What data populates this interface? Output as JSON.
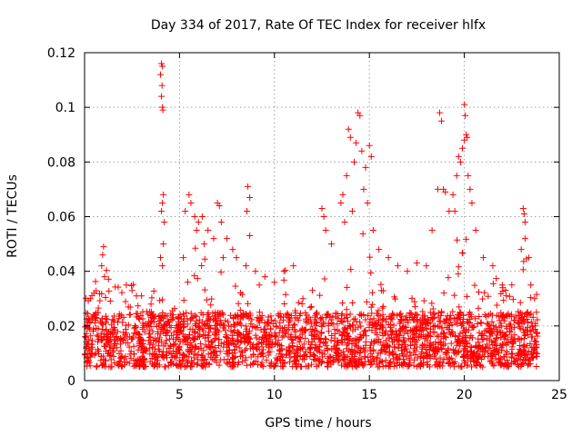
{
  "chart_data": {
    "type": "scatter",
    "title": "Day 334 of 2017, Rate Of TEC Index for receiver hlfx",
    "xlabel": "GPS time / hours",
    "ylabel": "ROTI / TECUs",
    "xlim": [
      0,
      25
    ],
    "ylim": [
      0,
      0.12
    ],
    "xticks": [
      0,
      5,
      10,
      15,
      20,
      25
    ],
    "xtick_labels": [
      "0",
      "5",
      "10",
      "15",
      "20",
      "25"
    ],
    "yticks": [
      0,
      0.02,
      0.04,
      0.06,
      0.08,
      0.1,
      0.12
    ],
    "ytick_labels": [
      "0",
      "0.02",
      "0.04",
      "0.06",
      "0.08",
      "0.1",
      "0.12"
    ],
    "grid": true,
    "marker": "plus",
    "color": "#ff0000",
    "x_data_range": [
      0,
      23.85
    ],
    "typical_band": [
      0.005,
      0.025
    ],
    "series": [
      {
        "points": [
          [
            4.05,
            0.116
          ],
          [
            4.1,
            0.115
          ],
          [
            4.0,
            0.112
          ],
          [
            4.08,
            0.108
          ],
          [
            4.05,
            0.104
          ],
          [
            4.1,
            0.1
          ],
          [
            4.12,
            0.099
          ],
          [
            4.15,
            0.068
          ],
          [
            4.1,
            0.065
          ],
          [
            4.05,
            0.062
          ],
          [
            4.2,
            0.058
          ],
          [
            4.15,
            0.05
          ],
          [
            4.0,
            0.045
          ],
          [
            4.1,
            0.042
          ],
          [
            5.5,
            0.068
          ],
          [
            5.6,
            0.065
          ],
          [
            5.3,
            0.062
          ],
          [
            5.8,
            0.06
          ],
          [
            6.0,
            0.058
          ],
          [
            5.9,
            0.055
          ],
          [
            6.2,
            0.06
          ],
          [
            6.5,
            0.055
          ],
          [
            6.8,
            0.052
          ],
          [
            7.0,
            0.065
          ],
          [
            7.1,
            0.064
          ],
          [
            7.2,
            0.058
          ],
          [
            7.5,
            0.052
          ],
          [
            7.8,
            0.048
          ],
          [
            8.6,
            0.071
          ],
          [
            8.7,
            0.067
          ],
          [
            8.55,
            0.062
          ],
          [
            8.7,
            0.053
          ],
          [
            8.0,
            0.045
          ],
          [
            8.5,
            0.042
          ],
          [
            9.0,
            0.04
          ],
          [
            1.0,
            0.049
          ],
          [
            0.95,
            0.046
          ],
          [
            0.9,
            0.042
          ],
          [
            1.05,
            0.038
          ],
          [
            0.3,
            0.03
          ],
          [
            0.5,
            0.032
          ],
          [
            2.2,
            0.035
          ],
          [
            2.5,
            0.033
          ],
          [
            3.0,
            0.031
          ],
          [
            3.5,
            0.028
          ],
          [
            9.5,
            0.038
          ],
          [
            10.0,
            0.036
          ],
          [
            10.5,
            0.04
          ],
          [
            11.0,
            0.042
          ],
          [
            11.5,
            0.03
          ],
          [
            12.0,
            0.033
          ],
          [
            12.5,
            0.063
          ],
          [
            12.6,
            0.06
          ],
          [
            12.7,
            0.055
          ],
          [
            13.0,
            0.05
          ],
          [
            13.5,
            0.065
          ],
          [
            13.8,
            0.075
          ],
          [
            13.9,
            0.092
          ],
          [
            14.0,
            0.089
          ],
          [
            14.2,
            0.08
          ],
          [
            14.4,
            0.098
          ],
          [
            14.5,
            0.097
          ],
          [
            14.3,
            0.087
          ],
          [
            14.6,
            0.084
          ],
          [
            14.8,
            0.078
          ],
          [
            14.7,
            0.07
          ],
          [
            14.9,
            0.065
          ],
          [
            15.0,
            0.086
          ],
          [
            15.1,
            0.082
          ],
          [
            13.6,
            0.068
          ],
          [
            13.7,
            0.058
          ],
          [
            14.1,
            0.062
          ],
          [
            15.2,
            0.055
          ],
          [
            15.5,
            0.048
          ],
          [
            16.0,
            0.045
          ],
          [
            16.5,
            0.042
          ],
          [
            17.0,
            0.04
          ],
          [
            17.5,
            0.043
          ],
          [
            18.0,
            0.042
          ],
          [
            18.3,
            0.055
          ],
          [
            18.6,
            0.07
          ],
          [
            18.7,
            0.098
          ],
          [
            18.8,
            0.095
          ],
          [
            18.9,
            0.07
          ],
          [
            19.0,
            0.069
          ],
          [
            19.2,
            0.062
          ],
          [
            19.5,
            0.062
          ],
          [
            19.6,
            0.075
          ],
          [
            19.8,
            0.08
          ],
          [
            19.9,
            0.085
          ],
          [
            20.0,
            0.101
          ],
          [
            20.05,
            0.097
          ],
          [
            20.1,
            0.09
          ],
          [
            20.15,
            0.089
          ],
          [
            20.0,
            0.088
          ],
          [
            20.2,
            0.075
          ],
          [
            20.3,
            0.07
          ],
          [
            20.4,
            0.065
          ],
          [
            19.7,
            0.082
          ],
          [
            19.4,
            0.068
          ],
          [
            20.6,
            0.055
          ],
          [
            21.0,
            0.045
          ],
          [
            21.5,
            0.042
          ],
          [
            22.0,
            0.035
          ],
          [
            22.5,
            0.035
          ],
          [
            23.0,
            0.048
          ],
          [
            23.2,
            0.052
          ],
          [
            23.1,
            0.063
          ],
          [
            23.15,
            0.061
          ],
          [
            23.2,
            0.058
          ],
          [
            23.5,
            0.035
          ],
          [
            23.7,
            0.03
          ],
          [
            23.8,
            0.025
          ],
          [
            23.4,
            0.045
          ],
          [
            5.2,
            0.045
          ],
          [
            6.3,
            0.05
          ],
          [
            7.3,
            0.045
          ],
          [
            9.2,
            0.035
          ]
        ]
      }
    ]
  }
}
